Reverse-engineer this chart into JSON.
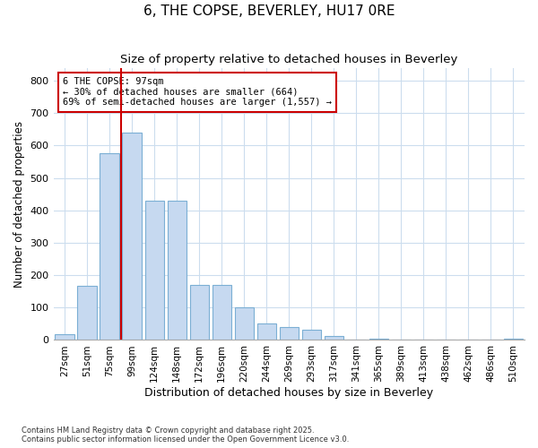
{
  "title": "6, THE COPSE, BEVERLEY, HU17 0RE",
  "subtitle": "Size of property relative to detached houses in Beverley",
  "xlabel": "Distribution of detached houses by size in Beverley",
  "ylabel": "Number of detached properties",
  "categories": [
    "27sqm",
    "51sqm",
    "75sqm",
    "99sqm",
    "124sqm",
    "148sqm",
    "172sqm",
    "196sqm",
    "220sqm",
    "244sqm",
    "269sqm",
    "293sqm",
    "317sqm",
    "341sqm",
    "365sqm",
    "389sqm",
    "413sqm",
    "438sqm",
    "462sqm",
    "486sqm",
    "510sqm"
  ],
  "values": [
    18,
    168,
    575,
    640,
    430,
    430,
    170,
    170,
    100,
    52,
    40,
    32,
    12,
    0,
    5,
    2,
    0,
    0,
    0,
    0,
    3
  ],
  "bar_color": "#c6d9f0",
  "bar_edge_color": "#7bafd4",
  "property_line_index": 3,
  "annotation_text": "6 THE COPSE: 97sqm\n← 30% of detached houses are smaller (664)\n69% of semi-detached houses are larger (1,557) →",
  "annotation_box_color": "#ffffff",
  "annotation_box_edge": "#cc0000",
  "line_color": "#cc0000",
  "ylim": [
    0,
    840
  ],
  "yticks": [
    0,
    100,
    200,
    300,
    400,
    500,
    600,
    700,
    800
  ],
  "bg_color": "#ffffff",
  "plot_bg_color": "#ffffff",
  "grid_color": "#ccddee",
  "footer1": "Contains HM Land Registry data © Crown copyright and database right 2025.",
  "footer2": "Contains public sector information licensed under the Open Government Licence v3.0."
}
